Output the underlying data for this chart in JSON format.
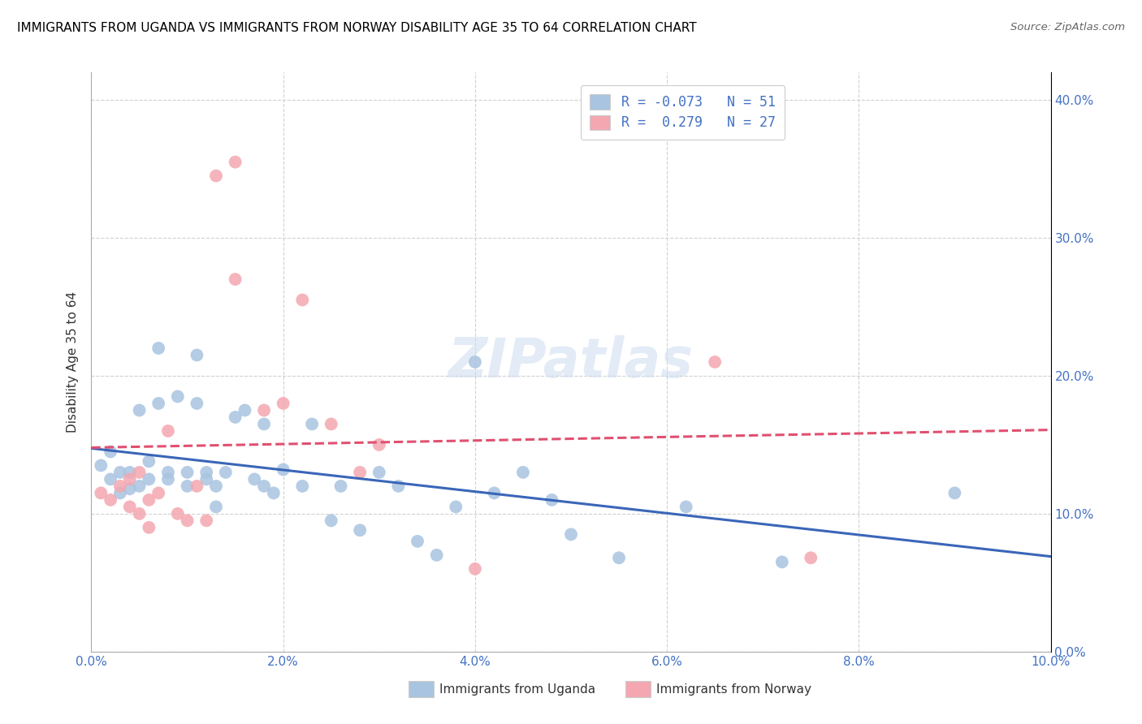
{
  "title": "IMMIGRANTS FROM UGANDA VS IMMIGRANTS FROM NORWAY DISABILITY AGE 35 TO 64 CORRELATION CHART",
  "source": "Source: ZipAtlas.com",
  "ylabel": "Disability Age 35 to 64",
  "xlim": [
    0.0,
    0.1
  ],
  "ylim": [
    0.0,
    0.42
  ],
  "xtick_vals": [
    0.0,
    0.02,
    0.04,
    0.06,
    0.08,
    0.1
  ],
  "ytick_vals": [
    0.0,
    0.1,
    0.2,
    0.3,
    0.4
  ],
  "legend_r_uganda": "-0.073",
  "legend_n_uganda": "51",
  "legend_r_norway": " 0.279",
  "legend_n_norway": "27",
  "uganda_color": "#a8c4e0",
  "norway_color": "#f4a7b0",
  "uganda_line_color": "#3a66b8",
  "norway_line_color": "#e05070",
  "watermark_color": "#d0dff0",
  "uganda_x": [
    0.001,
    0.002,
    0.002,
    0.003,
    0.003,
    0.004,
    0.004,
    0.005,
    0.005,
    0.006,
    0.006,
    0.007,
    0.007,
    0.008,
    0.008,
    0.009,
    0.01,
    0.01,
    0.011,
    0.011,
    0.012,
    0.012,
    0.013,
    0.013,
    0.014,
    0.015,
    0.016,
    0.017,
    0.018,
    0.018,
    0.019,
    0.02,
    0.022,
    0.023,
    0.025,
    0.026,
    0.028,
    0.03,
    0.032,
    0.034,
    0.036,
    0.038,
    0.04,
    0.042,
    0.045,
    0.048,
    0.05,
    0.055,
    0.062,
    0.072,
    0.09
  ],
  "uganda_y": [
    0.135,
    0.125,
    0.145,
    0.13,
    0.115,
    0.13,
    0.118,
    0.175,
    0.12,
    0.138,
    0.125,
    0.18,
    0.22,
    0.13,
    0.125,
    0.185,
    0.13,
    0.12,
    0.215,
    0.18,
    0.125,
    0.13,
    0.105,
    0.12,
    0.13,
    0.17,
    0.175,
    0.125,
    0.165,
    0.12,
    0.115,
    0.132,
    0.12,
    0.165,
    0.095,
    0.12,
    0.088,
    0.13,
    0.12,
    0.08,
    0.07,
    0.105,
    0.21,
    0.115,
    0.13,
    0.11,
    0.085,
    0.068,
    0.105,
    0.065,
    0.115
  ],
  "norway_x": [
    0.001,
    0.002,
    0.003,
    0.004,
    0.004,
    0.005,
    0.005,
    0.006,
    0.006,
    0.007,
    0.008,
    0.009,
    0.01,
    0.011,
    0.012,
    0.013,
    0.015,
    0.015,
    0.018,
    0.02,
    0.022,
    0.025,
    0.028,
    0.03,
    0.04,
    0.065,
    0.075
  ],
  "norway_y": [
    0.115,
    0.11,
    0.12,
    0.105,
    0.125,
    0.1,
    0.13,
    0.11,
    0.09,
    0.115,
    0.16,
    0.1,
    0.095,
    0.12,
    0.095,
    0.345,
    0.355,
    0.27,
    0.175,
    0.18,
    0.255,
    0.165,
    0.13,
    0.15,
    0.06,
    0.21,
    0.068
  ]
}
